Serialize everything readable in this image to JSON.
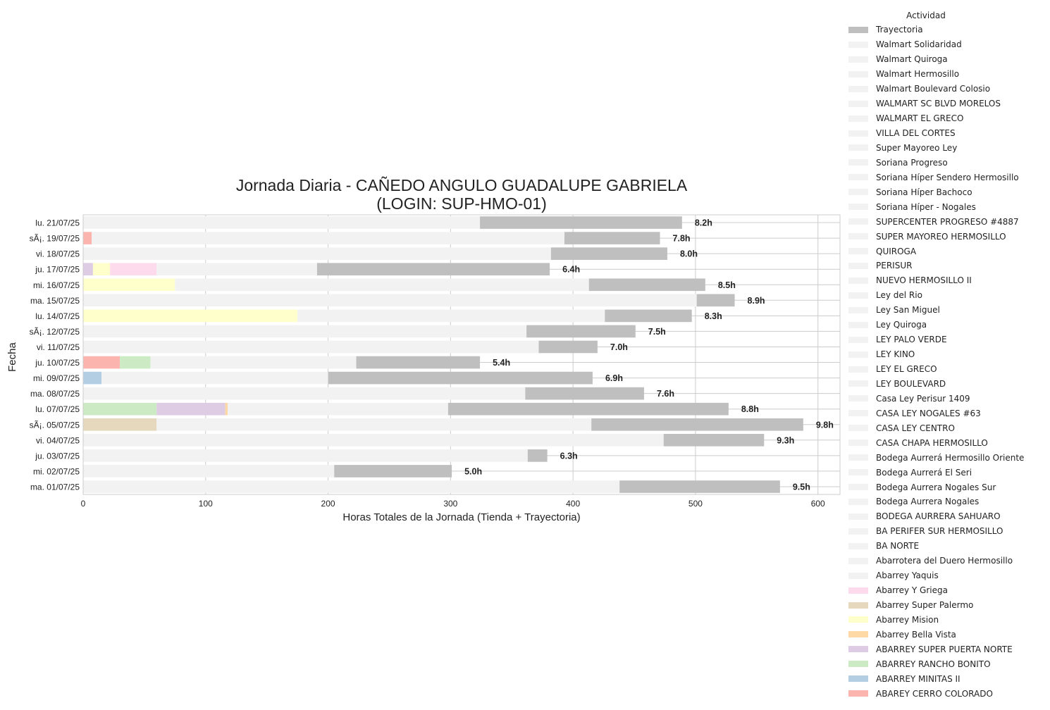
{
  "chart_data": {
    "type": "bar",
    "orientation": "horizontal",
    "stacked": true,
    "title_line1": "Jornada Diaria - CAÑEDO ANGULO GUADALUPE GABRIELA",
    "title_line2": "(LOGIN: SUP-HMO-01)",
    "xlabel": "Horas Totales de la Jornada (Tienda + Trayectoria)",
    "ylabel": "Fecha",
    "xlim": [
      0,
      618
    ],
    "xticks": [
      "0",
      "100",
      "200",
      "300",
      "400",
      "500",
      "600"
    ],
    "grid": true,
    "legend_title": "Actividad",
    "legend_position": "right",
    "background_color": "#f2f2f2",
    "categories": [
      "lu. 21/07/25",
      "sÃ¡. 19/07/25",
      "vi. 18/07/25",
      "ju. 17/07/25",
      "mi. 16/07/25",
      "ma. 15/07/25",
      "lu. 14/07/25",
      "sÃ¡. 12/07/25",
      "vi. 11/07/25",
      "ju. 10/07/25",
      "mi. 09/07/25",
      "ma. 08/07/25",
      "lu. 07/07/25",
      "sÃ¡. 05/07/25",
      "vi. 04/07/25",
      "ju. 03/07/25",
      "mi. 02/07/25",
      "ma. 01/07/25"
    ],
    "bars": [
      {
        "segments": [
          {
            "activity": "Walmart",
            "value": 324
          },
          {
            "activity": "Trayectoria",
            "value": 165
          }
        ],
        "total_label": "8.2h"
      },
      {
        "segments": [
          {
            "activity": "ABAREY CERRO COLORADO",
            "value": 7
          },
          {
            "activity": "Walmart",
            "value": 386
          },
          {
            "activity": "Trayectoria",
            "value": 78
          }
        ],
        "total_label": "7.8h"
      },
      {
        "segments": [
          {
            "activity": "Walmart",
            "value": 382
          },
          {
            "activity": "Trayectoria",
            "value": 95
          }
        ],
        "total_label": "8.0h"
      },
      {
        "segments": [
          {
            "activity": "ABARREY SUPER PUERTA NORTE",
            "value": 8
          },
          {
            "activity": "Abarrey Mision",
            "value": 14
          },
          {
            "activity": "Abarrey Y Griega",
            "value": 38
          },
          {
            "activity": "Walmart",
            "value": 131
          },
          {
            "activity": "Trayectoria",
            "value": 190
          }
        ],
        "total_label": "6.4h"
      },
      {
        "segments": [
          {
            "activity": "Abarrey Mision",
            "value": 75
          },
          {
            "activity": "Walmart",
            "value": 338
          },
          {
            "activity": "Trayectoria",
            "value": 95
          }
        ],
        "total_label": "8.5h"
      },
      {
        "segments": [
          {
            "activity": "Walmart",
            "value": 501
          },
          {
            "activity": "Trayectoria",
            "value": 31
          }
        ],
        "total_label": "8.9h"
      },
      {
        "segments": [
          {
            "activity": "Abarrey Mision",
            "value": 175
          },
          {
            "activity": "Walmart",
            "value": 251
          },
          {
            "activity": "Trayectoria",
            "value": 71
          }
        ],
        "total_label": "8.3h"
      },
      {
        "segments": [
          {
            "activity": "Walmart",
            "value": 362
          },
          {
            "activity": "Trayectoria",
            "value": 89
          }
        ],
        "total_label": "7.5h"
      },
      {
        "segments": [
          {
            "activity": "Walmart",
            "value": 372
          },
          {
            "activity": "Trayectoria",
            "value": 48
          }
        ],
        "total_label": "7.0h"
      },
      {
        "segments": [
          {
            "activity": "ABAREY CERRO COLORADO",
            "value": 30
          },
          {
            "activity": "ABARREY RANCHO BONITO",
            "value": 25
          },
          {
            "activity": "Walmart",
            "value": 168
          },
          {
            "activity": "Trayectoria",
            "value": 101
          }
        ],
        "total_label": "5.4h"
      },
      {
        "segments": [
          {
            "activity": "ABARREY MINITAS II",
            "value": 15
          },
          {
            "activity": "Walmart",
            "value": 185
          },
          {
            "activity": "Trayectoria",
            "value": 216
          }
        ],
        "total_label": "6.9h"
      },
      {
        "segments": [
          {
            "activity": "Walmart",
            "value": 361
          },
          {
            "activity": "Trayectoria",
            "value": 97
          }
        ],
        "total_label": "7.6h"
      },
      {
        "segments": [
          {
            "activity": "ABARREY RANCHO BONITO",
            "value": 60
          },
          {
            "activity": "ABARREY SUPER PUERTA NORTE",
            "value": 56
          },
          {
            "activity": "Abarrey Bella Vista",
            "value": 2
          },
          {
            "activity": "Walmart",
            "value": 180
          },
          {
            "activity": "Trayectoria",
            "value": 229
          }
        ],
        "total_label": "8.8h"
      },
      {
        "segments": [
          {
            "activity": "Abarrey Super Palermo",
            "value": 60
          },
          {
            "activity": "Walmart",
            "value": 355
          },
          {
            "activity": "Trayectoria",
            "value": 173
          }
        ],
        "total_label": "9.8h"
      },
      {
        "segments": [
          {
            "activity": "Walmart",
            "value": 474
          },
          {
            "activity": "Trayectoria",
            "value": 82
          }
        ],
        "total_label": "9.3h"
      },
      {
        "segments": [
          {
            "activity": "Walmart",
            "value": 363
          },
          {
            "activity": "Trayectoria",
            "value": 16
          }
        ],
        "total_label": "6.3h"
      },
      {
        "segments": [
          {
            "activity": "Walmart",
            "value": 205
          },
          {
            "activity": "Trayectoria",
            "value": 96
          }
        ],
        "total_label": "5.0h"
      },
      {
        "segments": [
          {
            "activity": "Walmart",
            "value": 438
          },
          {
            "activity": "Trayectoria",
            "value": 131
          }
        ],
        "total_label": "9.5h"
      }
    ],
    "legend": [
      {
        "label": "Trayectoria",
        "color": "#bfbfbf"
      },
      {
        "label": "Walmart Solidaridad",
        "color": "#f2f2f2"
      },
      {
        "label": "Walmart Quiroga",
        "color": "#f2f2f2"
      },
      {
        "label": "Walmart Hermosillo",
        "color": "#f2f2f2"
      },
      {
        "label": "Walmart Boulevard Colosio",
        "color": "#f2f2f2"
      },
      {
        "label": "WALMART SC BLVD MORELOS",
        "color": "#f2f2f2"
      },
      {
        "label": "WALMART EL GRECO",
        "color": "#f2f2f2"
      },
      {
        "label": "VILLA DEL CORTES",
        "color": "#f2f2f2"
      },
      {
        "label": "Super Mayoreo Ley",
        "color": "#f2f2f2"
      },
      {
        "label": "Soriana Progreso",
        "color": "#f2f2f2"
      },
      {
        "label": "Soriana Híper Sendero Hermosillo",
        "color": "#f2f2f2"
      },
      {
        "label": "Soriana Híper Bachoco",
        "color": "#f2f2f2"
      },
      {
        "label": "Soriana Híper - Nogales",
        "color": "#f2f2f2"
      },
      {
        "label": "SUPERCENTER PROGRESO #4887",
        "color": "#f2f2f2"
      },
      {
        "label": "SUPER MAYOREO HERMOSILLO",
        "color": "#f2f2f2"
      },
      {
        "label": "QUIROGA",
        "color": "#f2f2f2"
      },
      {
        "label": "PERISUR",
        "color": "#f2f2f2"
      },
      {
        "label": "NUEVO HERMOSILLO II",
        "color": "#f2f2f2"
      },
      {
        "label": "Ley del Rio",
        "color": "#f2f2f2"
      },
      {
        "label": "Ley San Miguel",
        "color": "#f2f2f2"
      },
      {
        "label": "Ley Quiroga",
        "color": "#f2f2f2"
      },
      {
        "label": "LEY PALO VERDE",
        "color": "#f2f2f2"
      },
      {
        "label": "LEY KINO",
        "color": "#f2f2f2"
      },
      {
        "label": "LEY EL GRECO",
        "color": "#f2f2f2"
      },
      {
        "label": "LEY BOULEVARD",
        "color": "#f2f2f2"
      },
      {
        "label": "Casa Ley Perisur 1409",
        "color": "#f2f2f2"
      },
      {
        "label": "CASA LEY NOGALES #63",
        "color": "#f2f2f2"
      },
      {
        "label": "CASA LEY CENTRO",
        "color": "#f2f2f2"
      },
      {
        "label": "CASA CHAPA HERMOSILLO",
        "color": "#f2f2f2"
      },
      {
        "label": "Bodega Aurrerá Hermosillo Oriente",
        "color": "#f2f2f2"
      },
      {
        "label": "Bodega Aurrerá El Seri",
        "color": "#f2f2f2"
      },
      {
        "label": "Bodega Aurrera Nogales Sur",
        "color": "#f2f2f2"
      },
      {
        "label": "Bodega Aurrera Nogales",
        "color": "#f2f2f2"
      },
      {
        "label": "BODEGA AURRERA SAHUARO",
        "color": "#f2f2f2"
      },
      {
        "label": "BA PERIFER SUR HERMOSILLO",
        "color": "#f2f2f2"
      },
      {
        "label": "BA NORTE",
        "color": "#f2f2f2"
      },
      {
        "label": "Abarrotera del Duero Hermosillo",
        "color": "#f2f2f2"
      },
      {
        "label": "Abarrey Yaquis",
        "color": "#f2f2f2"
      },
      {
        "label": "Abarrey Y Griega",
        "color": "#fddaec"
      },
      {
        "label": "Abarrey Super Palermo",
        "color": "#e5d8bd"
      },
      {
        "label": "Abarrey Mision",
        "color": "#ffffcc"
      },
      {
        "label": "Abarrey Bella Vista",
        "color": "#fed9a6"
      },
      {
        "label": "ABARREY SUPER PUERTA NORTE",
        "color": "#decbe4"
      },
      {
        "label": "ABARREY RANCHO BONITO",
        "color": "#ccebc5"
      },
      {
        "label": "ABARREY MINITAS II",
        "color": "#b3cde3"
      },
      {
        "label": "ABAREY CERRO COLORADO",
        "color": "#fbb4ae"
      }
    ],
    "segment_colors": {
      "Trayectoria": "#bfbfbf",
      "Walmart": "#f2f2f2",
      "Abarrey Y Griega": "#fddaec",
      "Abarrey Super Palermo": "#e5d8bd",
      "Abarrey Mision": "#ffffcc",
      "Abarrey Bella Vista": "#fed9a6",
      "ABARREY SUPER PUERTA NORTE": "#decbe4",
      "ABARREY RANCHO BONITO": "#ccebc5",
      "ABARREY MINITAS II": "#b3cde3",
      "ABAREY CERRO COLORADO": "#fbb4ae"
    }
  }
}
